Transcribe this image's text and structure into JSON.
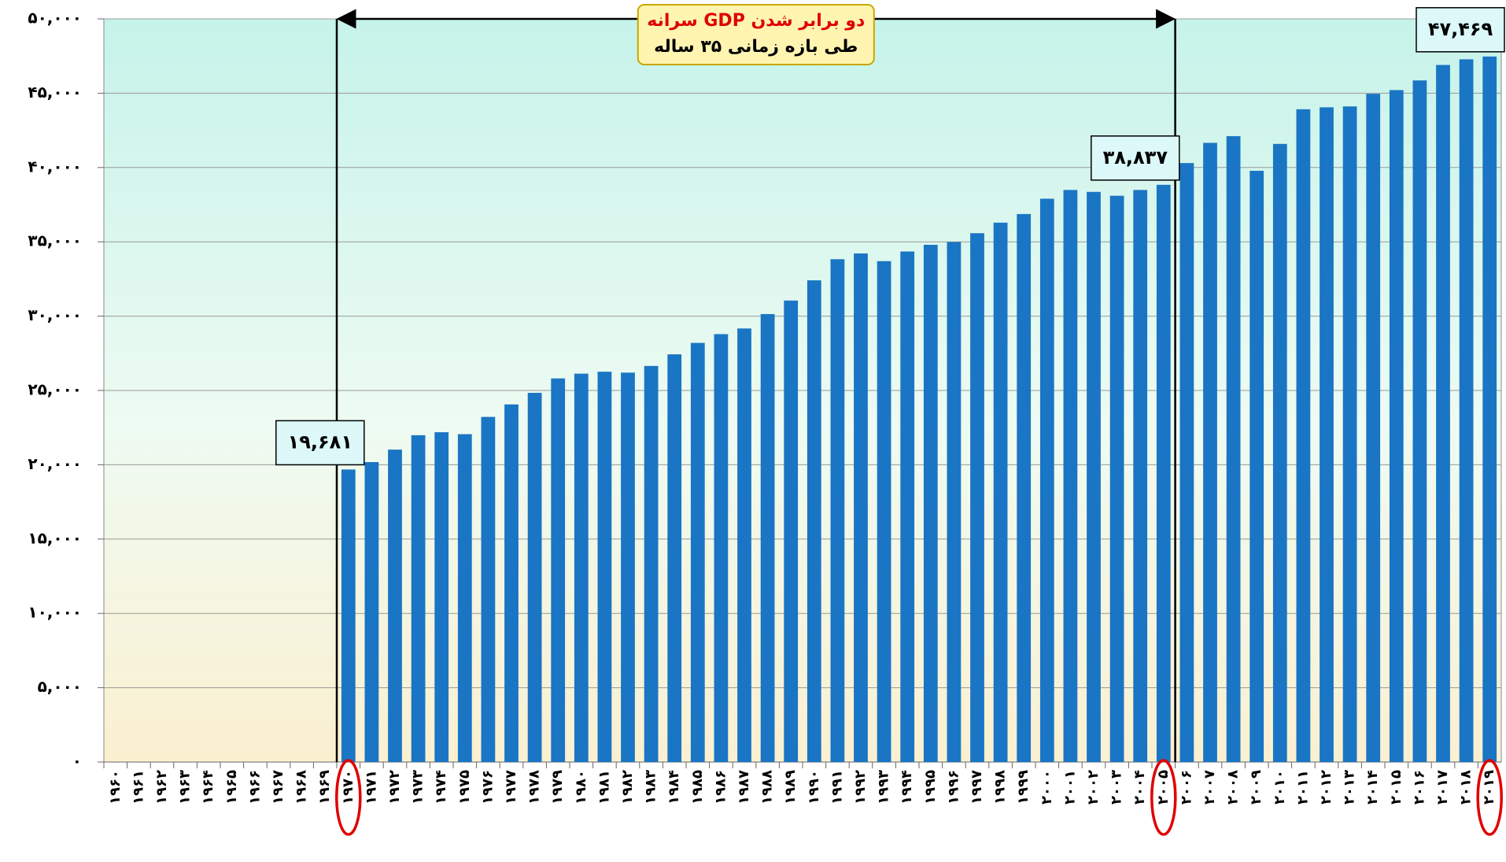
{
  "chart_data": {
    "type": "bar",
    "annotation": [
      "دو برابر شدن GDP سرانه",
      "طی بازه زمانی ۳۵ ساله"
    ],
    "categories": [
      "۱۹۶۰",
      "۱۹۶۱",
      "۱۹۶۲",
      "۱۹۶۳",
      "۱۹۶۴",
      "۱۹۶۵",
      "۱۹۶۶",
      "۱۹۶۷",
      "۱۹۶۸",
      "۱۹۶۹",
      "۱۹۷۰",
      "۱۹۷۱",
      "۱۹۷۲",
      "۱۹۷۳",
      "۱۹۷۴",
      "۱۹۷۵",
      "۱۹۷۶",
      "۱۹۷۷",
      "۱۹۷۸",
      "۱۹۷۹",
      "۱۹۸۰",
      "۱۹۸۱",
      "۱۹۸۲",
      "۱۹۸۳",
      "۱۹۸۴",
      "۱۹۸۵",
      "۱۹۸۶",
      "۱۹۸۷",
      "۱۹۸۸",
      "۱۹۸۹",
      "۱۹۹۰",
      "۱۹۹۱",
      "۱۹۹۲",
      "۱۹۹۳",
      "۱۹۹۴",
      "۱۹۹۵",
      "۱۹۹۶",
      "۱۹۹۷",
      "۱۹۹۸",
      "۱۹۹۹",
      "۲۰۰۰",
      "۲۰۰۱",
      "۲۰۰۲",
      "۲۰۰۳",
      "۲۰۰۴",
      "۲۰۰۵",
      "۲۰۰۶",
      "۲۰۰۷",
      "۲۰۰۸",
      "۲۰۰۹",
      "۲۰۱۰",
      "۲۰۱۱",
      "۲۰۱۲",
      "۲۰۱۳",
      "۲۰۱۴",
      "۲۰۱۵",
      "۲۰۱۶",
      "۲۰۱۷",
      "۲۰۱۸",
      "۲۰۱۹"
    ],
    "values": [
      null,
      null,
      null,
      null,
      null,
      null,
      null,
      null,
      null,
      null,
      19681,
      20180,
      21020,
      21990,
      22190,
      22060,
      23220,
      24060,
      24840,
      25810,
      26130,
      26260,
      26200,
      26650,
      27430,
      28200,
      28790,
      29170,
      30140,
      31050,
      32410,
      33830,
      34220,
      33700,
      34350,
      34800,
      34990,
      35580,
      36290,
      36870,
      37900,
      38490,
      38360,
      38100,
      38490,
      38837,
      40300,
      41660,
      42110,
      39780,
      41590,
      43920,
      44050,
      44110,
      44960,
      45210,
      45860,
      46900,
      47280,
      47469
    ],
    "value_labels": [
      null,
      null,
      null,
      null,
      null,
      null,
      null,
      null,
      null,
      null,
      "۱۹,۶۸۱",
      null,
      null,
      null,
      null,
      null,
      null,
      null,
      null,
      null,
      null,
      null,
      null,
      null,
      null,
      null,
      null,
      null,
      null,
      null,
      null,
      null,
      null,
      null,
      null,
      null,
      null,
      null,
      null,
      null,
      null,
      null,
      null,
      null,
      null,
      "۳۸,۸۳۷",
      null,
      null,
      null,
      null,
      null,
      null,
      null,
      null,
      null,
      null,
      null,
      null,
      null,
      "۴۷,۴۶۹"
    ],
    "color": "#1a75c4",
    "ylim": [
      0,
      50000
    ],
    "yticks": [
      {
        "value": 0,
        "label": "۰"
      },
      {
        "value": 5000,
        "label": "۵,۰۰۰"
      },
      {
        "value": 10000,
        "label": "۱۰,۰۰۰"
      },
      {
        "value": 15000,
        "label": "۱۵,۰۰۰"
      },
      {
        "value": 20000,
        "label": "۲۰,۰۰۰"
      },
      {
        "value": 25000,
        "label": "۲۵,۰۰۰"
      },
      {
        "value": 30000,
        "label": "۳۰,۰۰۰"
      },
      {
        "value": 35000,
        "label": "۳۵,۰۰۰"
      },
      {
        "value": 40000,
        "label": "۴۰,۰۰۰"
      },
      {
        "value": 45000,
        "label": "۴۵,۰۰۰"
      },
      {
        "value": 50000,
        "label": "۵۰,۰۰۰"
      }
    ],
    "grid": true
  }
}
